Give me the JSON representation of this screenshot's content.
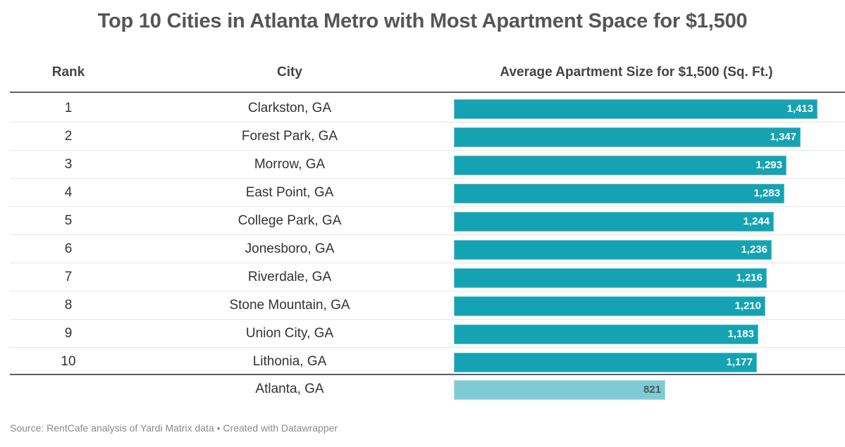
{
  "header": {
    "title": "Top 10 Cities in Atlanta Metro with Most Apartment Space for $1,500",
    "columns": [
      "Rank",
      "City",
      "Average Apartment Size for $1,500 (Sq. Ft.)"
    ]
  },
  "colors": {
    "bar": "#15a3b3",
    "reference_bar": "#7ecbd5"
  },
  "footer": {
    "source": "Source: RentCafe analysis of Yardi Matrix data • Created with Datawrapper"
  },
  "chart_data": {
    "type": "bar",
    "orientation": "horizontal",
    "title": "Top 10 Cities in Atlanta Metro with Most Apartment Space for $1,500",
    "xlabel": "Average Apartment Size for $1,500 (Sq. Ft.)",
    "ylabel": "City",
    "xlim": [
      0,
      1413
    ],
    "grid": false,
    "rows": [
      {
        "rank": "1",
        "city": "Clarkston, GA",
        "value": 1413,
        "label": "1,413"
      },
      {
        "rank": "2",
        "city": "Forest Park, GA",
        "value": 1347,
        "label": "1,347"
      },
      {
        "rank": "3",
        "city": "Morrow, GA",
        "value": 1293,
        "label": "1,293"
      },
      {
        "rank": "4",
        "city": "East Point, GA",
        "value": 1283,
        "label": "1,283"
      },
      {
        "rank": "5",
        "city": "College Park, GA",
        "value": 1244,
        "label": "1,244"
      },
      {
        "rank": "6",
        "city": "Jonesboro, GA",
        "value": 1236,
        "label": "1,236"
      },
      {
        "rank": "7",
        "city": "Riverdale, GA",
        "value": 1216,
        "label": "1,216"
      },
      {
        "rank": "8",
        "city": "Stone Mountain, GA",
        "value": 1210,
        "label": "1,210"
      },
      {
        "rank": "9",
        "city": "Union City, GA",
        "value": 1183,
        "label": "1,183"
      },
      {
        "rank": "10",
        "city": "Lithonia, GA",
        "value": 1177,
        "label": "1,177"
      }
    ],
    "reference": {
      "rank": "",
      "city": "Atlanta, GA",
      "value": 821,
      "label": "821"
    }
  }
}
